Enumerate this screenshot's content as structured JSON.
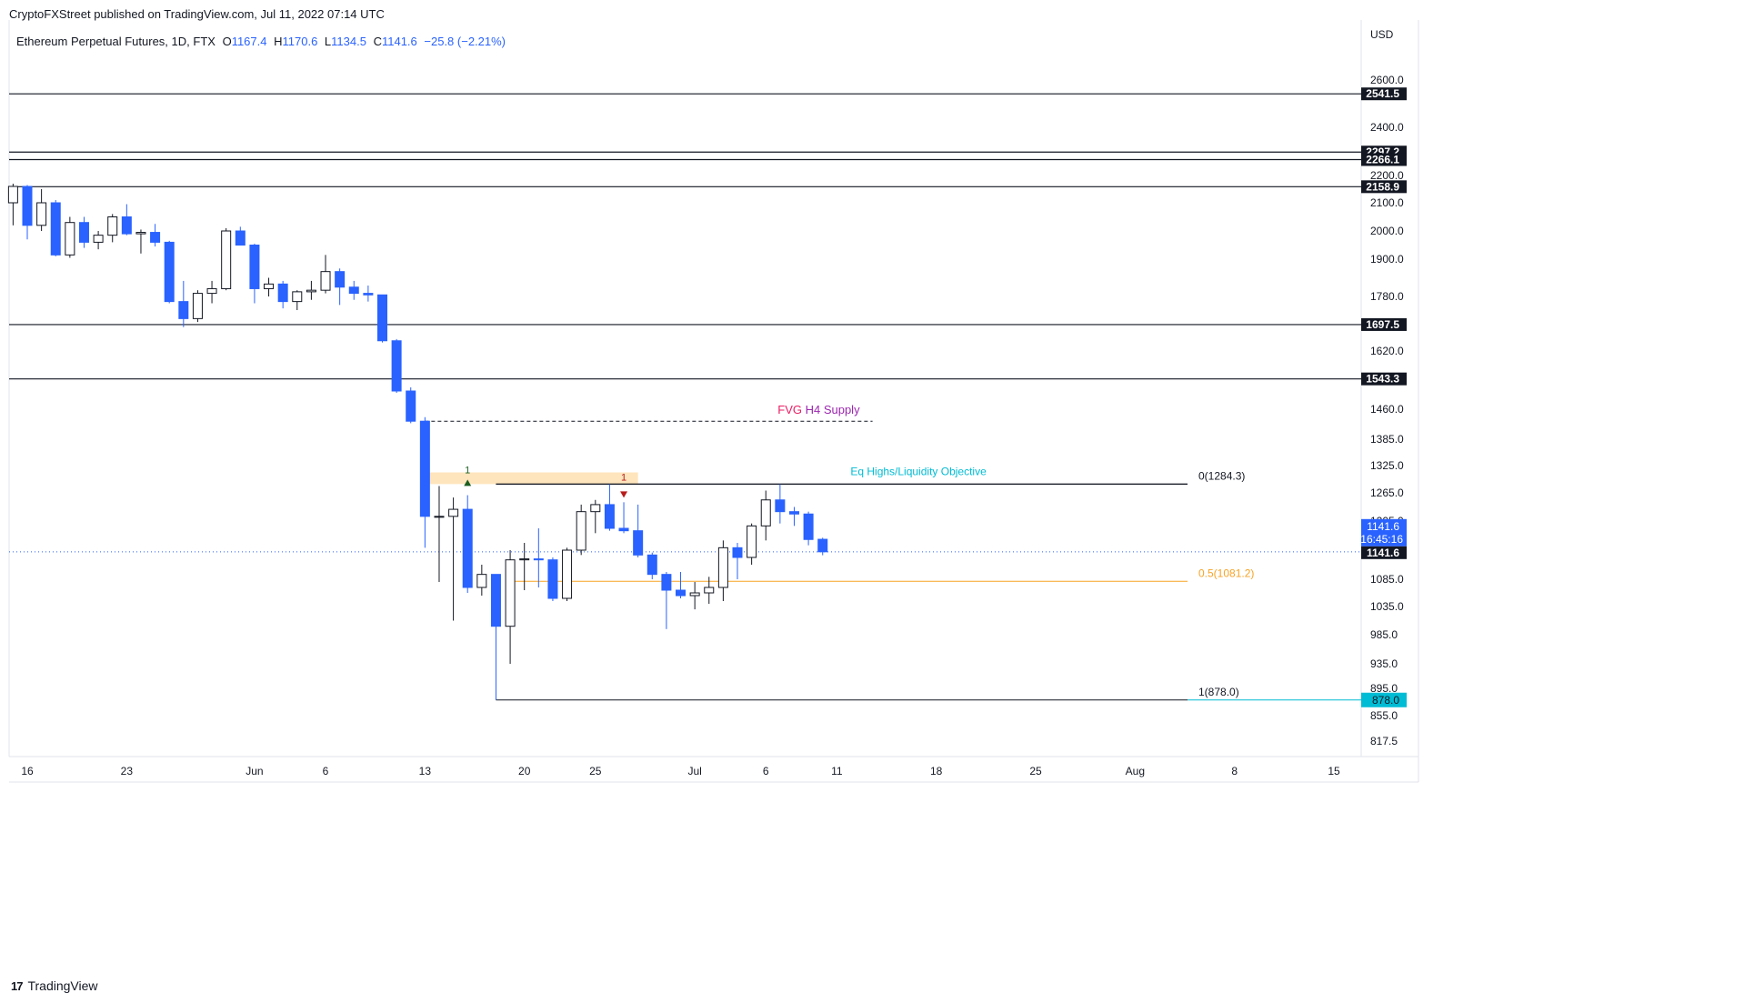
{
  "header": {
    "published_by": "CryptoFXStreet published on TradingView.com, Jul 11, 2022 07:14 UTC"
  },
  "legend": {
    "symbol": "Ethereum Perpetual Futures, 1D, FTX",
    "o_label": "O",
    "o": "1167.4",
    "h_label": "H",
    "h": "1170.6",
    "l_label": "L",
    "l": "1134.5",
    "c_label": "C",
    "c": "1141.6",
    "change": "−25.8 (−2.21%)"
  },
  "footer": {
    "brand": "TradingView",
    "logo": "tv-logo"
  },
  "colors": {
    "bear": "#2962ff",
    "bull": "#ffffff",
    "wick": "#131722",
    "grid": "#e0e3eb",
    "fvg": "#e91e63",
    "supply": "#9c27b0",
    "liquidity": "#00bcd4",
    "fib_half": "#f7a325",
    "marker_up": "#1b5e20",
    "marker_down": "#b71c1c"
  },
  "chart_data": {
    "type": "candlestick",
    "currency": "USD",
    "y_ticks": [
      817.5,
      855.0,
      895.0,
      935.0,
      985.0,
      1035.0,
      1085.0,
      1265.0,
      1325.0,
      1385.0,
      1460.0,
      1620.0,
      1780.0,
      1900.0,
      2000.0,
      2100.0,
      2200.0,
      2400.0,
      2600.0
    ],
    "y_tick_labels": [
      "817.5",
      "855.0",
      "895.0",
      "935.0",
      "985.0",
      "1035.0",
      "1085.0",
      "1265.0",
      "1325.0",
      "1385.0",
      "1460.0",
      "1620.0",
      "1780.0",
      "1900.0",
      "2000.0",
      "2100.0",
      "2200.0",
      "2400.0",
      "2600.0"
    ],
    "hidden_tick": {
      "value": 1205.0,
      "label": "1205.0"
    },
    "x_ticks": [
      {
        "day": 0,
        "label": "16"
      },
      {
        "day": 7,
        "label": "23"
      },
      {
        "day": 16,
        "label": "Jun"
      },
      {
        "day": 21,
        "label": "6"
      },
      {
        "day": 28,
        "label": "13"
      },
      {
        "day": 35,
        "label": "20"
      },
      {
        "day": 40,
        "label": "25"
      },
      {
        "day": 47,
        "label": "Jul"
      },
      {
        "day": 52,
        "label": "6"
      },
      {
        "day": 57,
        "label": "11"
      },
      {
        "day": 64,
        "label": "18"
      },
      {
        "day": 71,
        "label": "25"
      },
      {
        "day": 78,
        "label": "Aug"
      },
      {
        "day": 85,
        "label": "8"
      },
      {
        "day": 92,
        "label": "15"
      }
    ],
    "candles": [
      {
        "d": -1,
        "o": 2100,
        "h": 2170,
        "l": 2020,
        "c": 2160
      },
      {
        "d": 0,
        "o": 2160,
        "h": 2165,
        "l": 1970,
        "c": 2020
      },
      {
        "d": 1,
        "o": 2020,
        "h": 2150,
        "l": 2000,
        "c": 2100
      },
      {
        "d": 2,
        "o": 2100,
        "h": 2110,
        "l": 1910,
        "c": 1915
      },
      {
        "d": 3,
        "o": 1915,
        "h": 2050,
        "l": 1905,
        "c": 2030
      },
      {
        "d": 4,
        "o": 2030,
        "h": 2050,
        "l": 1940,
        "c": 1960
      },
      {
        "d": 5,
        "o": 1960,
        "h": 2000,
        "l": 1935,
        "c": 1985
      },
      {
        "d": 6,
        "o": 1985,
        "h": 2060,
        "l": 1960,
        "c": 2050
      },
      {
        "d": 7,
        "o": 2050,
        "h": 2095,
        "l": 1985,
        "c": 1990
      },
      {
        "d": 8,
        "o": 1990,
        "h": 2005,
        "l": 1920,
        "c": 1995
      },
      {
        "d": 9,
        "o": 1995,
        "h": 2025,
        "l": 1945,
        "c": 1960
      },
      {
        "d": 10,
        "o": 1960,
        "h": 1965,
        "l": 1760,
        "c": 1765
      },
      {
        "d": 11,
        "o": 1765,
        "h": 1830,
        "l": 1690,
        "c": 1715
      },
      {
        "d": 12,
        "o": 1715,
        "h": 1800,
        "l": 1705,
        "c": 1790
      },
      {
        "d": 13,
        "o": 1790,
        "h": 1830,
        "l": 1760,
        "c": 1805
      },
      {
        "d": 14,
        "o": 1805,
        "h": 2010,
        "l": 1800,
        "c": 2000
      },
      {
        "d": 15,
        "o": 2000,
        "h": 2015,
        "l": 1950,
        "c": 1950
      },
      {
        "d": 16,
        "o": 1950,
        "h": 1955,
        "l": 1760,
        "c": 1805
      },
      {
        "d": 17,
        "o": 1805,
        "h": 1840,
        "l": 1780,
        "c": 1820
      },
      {
        "d": 18,
        "o": 1820,
        "h": 1830,
        "l": 1745,
        "c": 1765
      },
      {
        "d": 19,
        "o": 1765,
        "h": 1800,
        "l": 1740,
        "c": 1795
      },
      {
        "d": 20,
        "o": 1795,
        "h": 1830,
        "l": 1770,
        "c": 1800
      },
      {
        "d": 21,
        "o": 1800,
        "h": 1915,
        "l": 1790,
        "c": 1860
      },
      {
        "d": 22,
        "o": 1860,
        "h": 1870,
        "l": 1755,
        "c": 1810
      },
      {
        "d": 23,
        "o": 1810,
        "h": 1830,
        "l": 1770,
        "c": 1790
      },
      {
        "d": 24,
        "o": 1790,
        "h": 1815,
        "l": 1765,
        "c": 1785
      },
      {
        "d": 25,
        "o": 1785,
        "h": 1785,
        "l": 1645,
        "c": 1650
      },
      {
        "d": 26,
        "o": 1650,
        "h": 1655,
        "l": 1505,
        "c": 1510
      },
      {
        "d": 27,
        "o": 1510,
        "h": 1520,
        "l": 1425,
        "c": 1430
      },
      {
        "d": 28,
        "o": 1430,
        "h": 1440,
        "l": 1150,
        "c": 1215
      },
      {
        "d": 29,
        "o": 1215,
        "h": 1280,
        "l": 1080,
        "c": 1215
      },
      {
        "d": 30,
        "o": 1215,
        "h": 1255,
        "l": 1010,
        "c": 1230
      },
      {
        "d": 31,
        "o": 1230,
        "h": 1260,
        "l": 1060,
        "c": 1070
      },
      {
        "d": 32,
        "o": 1070,
        "h": 1115,
        "l": 1055,
        "c": 1095
      },
      {
        "d": 33,
        "o": 1095,
        "h": 1095,
        "l": 878,
        "c": 1000
      },
      {
        "d": 34,
        "o": 1000,
        "h": 1145,
        "l": 935,
        "c": 1125
      },
      {
        "d": 35,
        "o": 1125,
        "h": 1160,
        "l": 1065,
        "c": 1127
      },
      {
        "d": 36,
        "o": 1127,
        "h": 1190,
        "l": 1070,
        "c": 1125
      },
      {
        "d": 37,
        "o": 1125,
        "h": 1130,
        "l": 1045,
        "c": 1050
      },
      {
        "d": 38,
        "o": 1050,
        "h": 1150,
        "l": 1045,
        "c": 1145
      },
      {
        "d": 39,
        "o": 1145,
        "h": 1240,
        "l": 1135,
        "c": 1225
      },
      {
        "d": 40,
        "o": 1225,
        "h": 1250,
        "l": 1180,
        "c": 1240
      },
      {
        "d": 41,
        "o": 1240,
        "h": 1284,
        "l": 1185,
        "c": 1190
      },
      {
        "d": 42,
        "o": 1190,
        "h": 1245,
        "l": 1180,
        "c": 1185
      },
      {
        "d": 43,
        "o": 1185,
        "h": 1240,
        "l": 1130,
        "c": 1135
      },
      {
        "d": 44,
        "o": 1135,
        "h": 1140,
        "l": 1085,
        "c": 1095
      },
      {
        "d": 45,
        "o": 1095,
        "h": 1100,
        "l": 995,
        "c": 1065
      },
      {
        "d": 46,
        "o": 1065,
        "h": 1100,
        "l": 1050,
        "c": 1055
      },
      {
        "d": 47,
        "o": 1055,
        "h": 1080,
        "l": 1030,
        "c": 1060
      },
      {
        "d": 48,
        "o": 1060,
        "h": 1090,
        "l": 1040,
        "c": 1070
      },
      {
        "d": 49,
        "o": 1070,
        "h": 1165,
        "l": 1045,
        "c": 1150
      },
      {
        "d": 50,
        "o": 1150,
        "h": 1160,
        "l": 1085,
        "c": 1130
      },
      {
        "d": 51,
        "o": 1130,
        "h": 1200,
        "l": 1115,
        "c": 1195
      },
      {
        "d": 52,
        "o": 1195,
        "h": 1270,
        "l": 1165,
        "c": 1250
      },
      {
        "d": 53,
        "o": 1250,
        "h": 1284,
        "l": 1200,
        "c": 1225
      },
      {
        "d": 54,
        "o": 1225,
        "h": 1235,
        "l": 1195,
        "c": 1220
      },
      {
        "d": 55,
        "o": 1220,
        "h": 1225,
        "l": 1155,
        "c": 1167
      },
      {
        "d": 56,
        "o": 1167.4,
        "h": 1170.6,
        "l": 1134.5,
        "c": 1141.6
      }
    ],
    "h_levels": [
      {
        "value": 2541.5,
        "label": "2541.5"
      },
      {
        "value": 2297.2,
        "label": "2297.2"
      },
      {
        "value": 2266.1,
        "label": "2266.1"
      },
      {
        "value": 2158.9,
        "label": "2158.9"
      },
      {
        "value": 1697.5,
        "label": "1697.5"
      },
      {
        "value": 1543.3,
        "label": "1543.3"
      }
    ],
    "last_price": {
      "value": 1141.6,
      "label": "1141.6",
      "countdown": "16:45:16"
    },
    "fib_level_878": {
      "value": 878.0,
      "label": "878.0"
    },
    "fib": [
      {
        "value": 1284.3,
        "label": "0(1284.3)",
        "from_day": 33
      },
      {
        "value": 1081.2,
        "label": "0.5(1081.2)",
        "from_day": 34
      },
      {
        "value": 878.0,
        "label": "1(878.0)",
        "from_day": 33
      }
    ],
    "fvg_supply": {
      "value": 1430,
      "from_day": 28,
      "to_day": 59,
      "label_part1": "FVG",
      "label_part2": "H4 Supply"
    },
    "eq_highs": {
      "value": 1284.3,
      "from_day": 33,
      "to_day": 63,
      "label": "Eq Highs/Liquidity Objective"
    },
    "supply_zone": {
      "low": 1284.3,
      "high": 1310,
      "from_day": 28,
      "to_day": 43
    },
    "markers": [
      {
        "day": 31,
        "value": 1284.3,
        "dir": "up",
        "label": "1"
      },
      {
        "day": 42,
        "value": 1284.3,
        "dir": "down",
        "label": "1"
      }
    ]
  }
}
